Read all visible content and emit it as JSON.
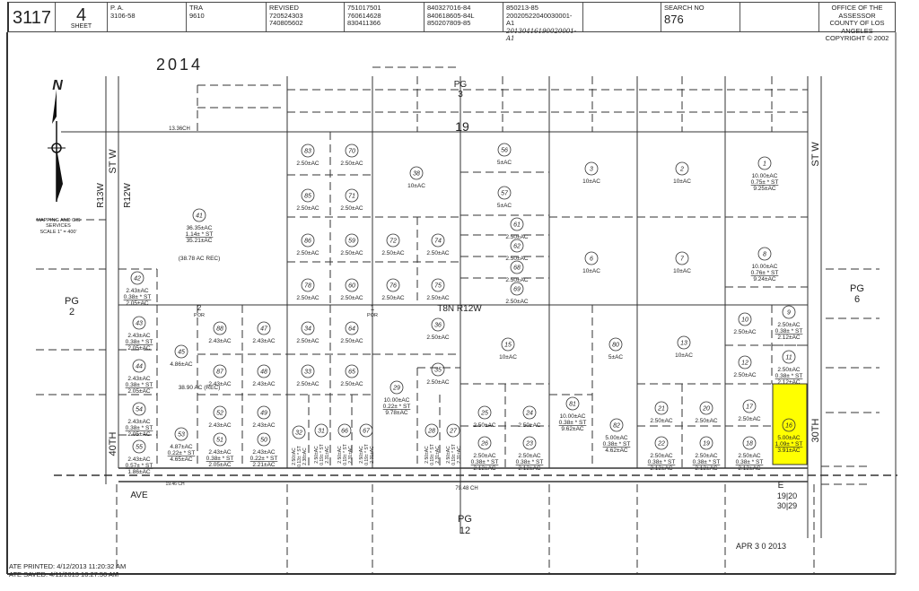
{
  "header": {
    "map_book": "3117",
    "sheet_number": "4",
    "sheet_label": "SHEET",
    "pa_label": "P. A.",
    "pa_value": "3106-58",
    "tra_label": "TRA",
    "tra_value": "9610",
    "revised_label": "REVISED",
    "revised_1": "720524303",
    "revised_2": "740805602",
    "rev_col2": [
      "751017501",
      "760614628",
      "830411366"
    ],
    "rev_col3": [
      "840327016-84",
      "840618605-84L",
      "850207809-85"
    ],
    "rev_col4": [
      "850213-85",
      "20020522040030001-A1",
      "20130416190020001-A1"
    ],
    "search_label": "SEARCH NO",
    "search_value": "876",
    "office_1": "OFFICE OF THE ASSESSOR",
    "office_2": "COUNTY OF LOS ANGELES",
    "office_3": "COPYRIGHT © 2002"
  },
  "stamps": {
    "year": "2014",
    "received": "APR 3 0 2013"
  },
  "legend": {
    "line1": "MAPPING AND GIS",
    "line2": "SERVICES",
    "scale": "SCALE 1\" = 400'"
  },
  "labels": {
    "pg3": [
      "PG",
      "3"
    ],
    "pg2": [
      "PG",
      "2"
    ],
    "pg6": [
      "PG",
      "6"
    ],
    "pg12": [
      "PG",
      "12"
    ],
    "section": "19",
    "chain_top": "13.36CH",
    "chain_bottom_left": "19.46 CH",
    "chain_bottom": "79.48 CH",
    "street_west_1": "40TH",
    "street_west_2": "ST W",
    "street_east_1": "30TH",
    "street_east_2": "ST W",
    "range_west": "R13W",
    "range_east": "R12W",
    "township": "T8N R12W",
    "ave": "AVE",
    "ave_e": "E",
    "por2": [
      "2",
      "POR"
    ],
    "por1": [
      "1",
      "POR"
    ],
    "rec1": "(38.78 AC REC)",
    "rec2": "38.90 AC (REC)",
    "corner": [
      "19|20",
      "30|29"
    ],
    "north": "N"
  },
  "highlight_color": "#ffff00",
  "highlighted_parcel": "16",
  "parcels": [
    {
      "id": "83",
      "lines": [
        "2.50±AC"
      ]
    },
    {
      "id": "70",
      "lines": [
        "2.50±AC"
      ]
    },
    {
      "id": "38",
      "lines": [
        "10±AC"
      ]
    },
    {
      "id": "56",
      "lines": [
        "5±AC"
      ]
    },
    {
      "id": "3",
      "lines": [
        "10±AC"
      ]
    },
    {
      "id": "2",
      "lines": [
        "10±AC"
      ]
    },
    {
      "id": "1",
      "lines": [
        "10.00±AC",
        "0.75± * ST",
        "9.25±AC"
      ]
    },
    {
      "id": "85",
      "lines": [
        "2.50±AC"
      ]
    },
    {
      "id": "71",
      "lines": [
        "2.50±AC"
      ]
    },
    {
      "id": "57",
      "lines": [
        "5±AC"
      ]
    },
    {
      "id": "41",
      "lines": [
        "36.35±AC",
        "1.14± * ST",
        "35.21±AC"
      ]
    },
    {
      "id": "86",
      "lines": [
        "2.50±AC"
      ]
    },
    {
      "id": "59",
      "lines": [
        "2.50±AC"
      ]
    },
    {
      "id": "72",
      "lines": [
        "2.50±AC"
      ]
    },
    {
      "id": "74",
      "lines": [
        "2.50±AC"
      ]
    },
    {
      "id": "61",
      "lines": [
        "2.50±AC"
      ]
    },
    {
      "id": "62",
      "lines": [
        "2.50±AC"
      ]
    },
    {
      "id": "68",
      "lines": [
        "2.50±AC"
      ]
    },
    {
      "id": "69",
      "lines": [
        "2.50±AC"
      ]
    },
    {
      "id": "6",
      "lines": [
        "10±AC"
      ]
    },
    {
      "id": "7",
      "lines": [
        "10±AC"
      ]
    },
    {
      "id": "8",
      "lines": [
        "10.00±AC",
        "0.76± * ST",
        "9.24±AC"
      ]
    },
    {
      "id": "42",
      "lines": [
        "2.43±AC",
        "0.38± * ST",
        "2.05±AC"
      ]
    },
    {
      "id": "78",
      "lines": [
        "2.50±AC"
      ]
    },
    {
      "id": "60",
      "lines": [
        "2.50±AC"
      ]
    },
    {
      "id": "76",
      "lines": [
        "2.50±AC"
      ]
    },
    {
      "id": "75",
      "lines": [
        "2.50±AC"
      ]
    },
    {
      "id": "43",
      "lines": [
        "2.43±AC",
        "0.38± * ST",
        "2.05±AC"
      ]
    },
    {
      "id": "45",
      "lines": [
        "4.86±AC"
      ]
    },
    {
      "id": "88",
      "lines": [
        "2.43±AC"
      ]
    },
    {
      "id": "47",
      "lines": [
        "2.43±AC"
      ]
    },
    {
      "id": "34",
      "lines": [
        "2.50±AC"
      ]
    },
    {
      "id": "64",
      "lines": [
        "2.50±AC"
      ]
    },
    {
      "id": "36",
      "lines": [
        "2.50±AC"
      ]
    },
    {
      "id": "15",
      "lines": [
        "10±AC"
      ]
    },
    {
      "id": "80",
      "lines": [
        "5±AC"
      ]
    },
    {
      "id": "13",
      "lines": [
        "10±AC"
      ]
    },
    {
      "id": "10",
      "lines": [
        "2.50±AC"
      ]
    },
    {
      "id": "9",
      "lines": [
        "2.50±AC",
        "0.38± * ST",
        "2.12±AC"
      ]
    },
    {
      "id": "44",
      "lines": [
        "2.43±AC",
        "0.38± * ST",
        "2.05±AC"
      ]
    },
    {
      "id": "87",
      "lines": [
        "2.43±AC"
      ]
    },
    {
      "id": "48",
      "lines": [
        "2.43±AC"
      ]
    },
    {
      "id": "33",
      "lines": [
        "2.50±AC"
      ]
    },
    {
      "id": "65",
      "lines": [
        "2.50±AC"
      ]
    },
    {
      "id": "35",
      "lines": [
        "2.50±AC"
      ]
    },
    {
      "id": "12",
      "lines": [
        "2.50±AC"
      ]
    },
    {
      "id": "11",
      "lines": [
        "2.50±AC",
        "0.38± * ST",
        "2.12±AC"
      ]
    },
    {
      "id": "29",
      "lines": [
        "10.00±AC",
        "0.22± * ST",
        "9.78±AC"
      ]
    },
    {
      "id": "81",
      "lines": [
        "10.00±AC",
        "0.38± * ST",
        "9.62±AC"
      ]
    },
    {
      "id": "54",
      "lines": [
        "2.43±AC",
        "0.38± * ST",
        "2.05±AC"
      ]
    },
    {
      "id": "52",
      "lines": [
        "2.43±AC"
      ]
    },
    {
      "id": "49",
      "lines": [
        "2.43±AC"
      ]
    },
    {
      "id": "25",
      "lines": [
        "2.50±AC"
      ]
    },
    {
      "id": "24",
      "lines": [
        "2.50±AC"
      ]
    },
    {
      "id": "21",
      "lines": [
        "2.50±AC"
      ]
    },
    {
      "id": "20",
      "lines": [
        "2.50±AC"
      ]
    },
    {
      "id": "17",
      "lines": [
        "2.50±AC"
      ]
    },
    {
      "id": "16",
      "lines": [
        "5.00±AC",
        "1.09± * ST",
        "3.91±AC"
      ]
    },
    {
      "id": "55",
      "lines": [
        "2.43±AC",
        "0.57± * ST",
        "1.86±AC"
      ]
    },
    {
      "id": "53",
      "lines": [
        "4.87±AC",
        "0.22± * ST",
        "4.65±AC"
      ]
    },
    {
      "id": "51",
      "lines": [
        "2.43±AC",
        "0.38± * ST",
        "2.05±AC"
      ]
    },
    {
      "id": "50",
      "lines": [
        "2.43±AC",
        "0.22± * ST",
        "2.21±AC"
      ]
    },
    {
      "id": "32",
      "lines": [
        "2.50±AC",
        "0.13± * ST",
        "2.38±AC"
      ],
      "vertical": true
    },
    {
      "id": "31",
      "lines": [
        "2.50±AC",
        "0.19± * ST",
        "2.31±AC"
      ],
      "vertical": true
    },
    {
      "id": "66",
      "lines": [
        "2.50±AC",
        "0.19± * ST",
        "2.31±AC"
      ],
      "vertical": true
    },
    {
      "id": "67",
      "lines": [
        "2.50±AC",
        "0.19± * ST",
        "2.31±AC"
      ],
      "vertical": true
    },
    {
      "id": "28",
      "lines": [
        "2.50±AC",
        "0.19± * ST",
        "2.31±AC"
      ],
      "vertical": true
    },
    {
      "id": "27",
      "lines": [
        "2.50±AC",
        "0.19± * ST",
        "2.31±AC"
      ],
      "vertical": true
    },
    {
      "id": "26",
      "lines": [
        "2.50±AC",
        "0.38± * ST",
        "2.12±AC"
      ]
    },
    {
      "id": "23",
      "lines": [
        "2.50±AC",
        "0.38± * ST",
        "2.12±AC"
      ]
    },
    {
      "id": "82",
      "lines": [
        "5.00±AC",
        "0.38± * ST",
        "4.62±AC"
      ]
    },
    {
      "id": "22",
      "lines": [
        "2.50±AC",
        "0.38± * ST",
        "2.12±AC"
      ]
    },
    {
      "id": "19",
      "lines": [
        "2.50±AC",
        "0.38± * ST",
        "2.12±AC"
      ]
    },
    {
      "id": "18",
      "lines": [
        "2.50±AC",
        "0.38± * ST",
        "2.12±AC"
      ]
    }
  ],
  "footer": {
    "printed": "ATE PRINTED: 4/12/2013 11:20:32 AM",
    "saved": "ATE SAVED: 4/11/2013 10:27:50 AM"
  }
}
